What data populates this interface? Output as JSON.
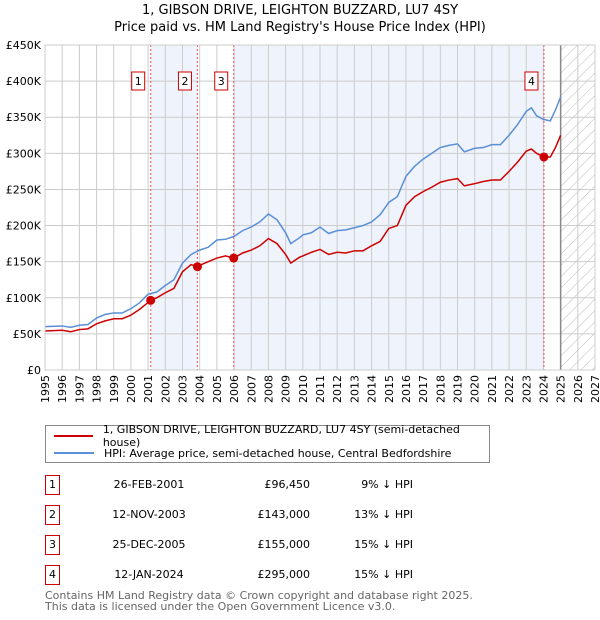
{
  "chart_data": {
    "type": "line",
    "title": "1, GIBSON DRIVE, LEIGHTON BUZZARD, LU7 4SY",
    "subtitle": "Price paid vs. HM Land Registry's House Price Index (HPI)",
    "xlim": [
      1995,
      2027
    ],
    "ylim": [
      0,
      450000
    ],
    "x_ticks": [
      "1995",
      "1996",
      "1997",
      "1998",
      "1999",
      "2000",
      "2001",
      "2002",
      "2003",
      "2004",
      "2005",
      "2006",
      "2007",
      "2008",
      "2009",
      "2010",
      "2011",
      "2012",
      "2013",
      "2014",
      "2015",
      "2016",
      "2017",
      "2018",
      "2019",
      "2020",
      "2021",
      "2022",
      "2023",
      "2024",
      "2025",
      "2026",
      "2027"
    ],
    "y_ticks": [
      {
        "v": 0,
        "label": "£0"
      },
      {
        "v": 50000,
        "label": "£50K"
      },
      {
        "v": 100000,
        "label": "£100K"
      },
      {
        "v": 150000,
        "label": "£150K"
      },
      {
        "v": 200000,
        "label": "£200K"
      },
      {
        "v": 250000,
        "label": "£250K"
      },
      {
        "v": 300000,
        "label": "£300K"
      },
      {
        "v": 350000,
        "label": "£350K"
      },
      {
        "v": 400000,
        "label": "£400K"
      },
      {
        "v": 450000,
        "label": "£450K"
      }
    ],
    "grid": true,
    "forecast_start": 2025,
    "series": [
      {
        "name": "1, GIBSON DRIVE, LEIGHTON BUZZARD, LU7 4SY (semi-detached house)",
        "color": "#cc0000",
        "x": [
          1995,
          1996,
          1996.5,
          1997,
          1997.5,
          1998,
          1998.5,
          1999,
          1999.5,
          2000,
          2000.5,
          2001.15,
          2001.5,
          2002,
          2002.5,
          2003,
          2003.5,
          2003.87,
          2004,
          2004.5,
          2005,
          2005.5,
          2005.98,
          2006.5,
          2007,
          2007.5,
          2008,
          2008.5,
          2009,
          2009.3,
          2009.8,
          2010,
          2010.5,
          2011,
          2011.5,
          2012,
          2012.5,
          2013,
          2013.5,
          2014,
          2014.5,
          2015,
          2015.5,
          2016,
          2016.5,
          2017,
          2017.5,
          2018,
          2018.5,
          2019,
          2019.4,
          2020,
          2020.5,
          2021,
          2021.5,
          2022,
          2022.5,
          2023,
          2023.3,
          2023.6,
          2024.03,
          2024.4,
          2024.7,
          2025
        ],
        "y": [
          54000,
          55000,
          53000,
          56000,
          57000,
          64000,
          68000,
          71000,
          71000,
          76000,
          84000,
          96450,
          100000,
          107000,
          113000,
          136000,
          146000,
          143000,
          145000,
          150000,
          155000,
          158000,
          155000,
          162000,
          166000,
          172000,
          182000,
          175000,
          160000,
          148000,
          156000,
          158000,
          163000,
          167000,
          160000,
          163000,
          162000,
          165000,
          165000,
          172000,
          178000,
          196000,
          200000,
          228000,
          240000,
          247000,
          253000,
          260000,
          263000,
          265000,
          255000,
          258000,
          261000,
          263000,
          263000,
          275000,
          288000,
          303000,
          306000,
          300000,
          295000,
          295000,
          308000,
          325000
        ]
      },
      {
        "name": "HPI: Average price, semi-detached house, Central Bedfordshire",
        "color": "#5b8fd6",
        "x": [
          1995,
          1996,
          1996.5,
          1997,
          1997.5,
          1998,
          1998.5,
          1999,
          1999.5,
          2000,
          2000.5,
          2001,
          2001.5,
          2002,
          2002.5,
          2003,
          2003.5,
          2004,
          2004.5,
          2005,
          2005.5,
          2006,
          2006.5,
          2007,
          2007.5,
          2008,
          2008.5,
          2009,
          2009.3,
          2009.8,
          2010,
          2010.5,
          2011,
          2011.5,
          2012,
          2012.5,
          2013,
          2013.5,
          2014,
          2014.5,
          2015,
          2015.5,
          2016,
          2016.5,
          2017,
          2017.5,
          2018,
          2018.5,
          2019,
          2019.4,
          2020,
          2020.5,
          2021,
          2021.5,
          2022,
          2022.5,
          2023,
          2023.3,
          2023.6,
          2024,
          2024.4,
          2024.7,
          2025
        ],
        "y": [
          60000,
          61000,
          59000,
          62000,
          63000,
          72000,
          77000,
          79000,
          79000,
          85000,
          93000,
          105000,
          108000,
          117000,
          125000,
          148000,
          160000,
          166000,
          170000,
          180000,
          181000,
          185000,
          193000,
          198000,
          205000,
          216000,
          208000,
          190000,
          175000,
          183000,
          187000,
          190000,
          198000,
          189000,
          193000,
          194000,
          197000,
          200000,
          205000,
          215000,
          232000,
          240000,
          268000,
          282000,
          292000,
          300000,
          308000,
          311000,
          313000,
          302000,
          307000,
          308000,
          312000,
          312000,
          325000,
          340000,
          358000,
          363000,
          352000,
          347000,
          345000,
          360000,
          378000
        ]
      }
    ],
    "sales": [
      {
        "n": "1",
        "x": 2001.15,
        "date": "26-FEB-2001",
        "price": 96450,
        "price_label": "£96,450",
        "hpi": "9% ↓ HPI"
      },
      {
        "n": "2",
        "x": 2003.87,
        "date": "12-NOV-2003",
        "price": 143000,
        "price_label": "£143,000",
        "hpi": "13% ↓ HPI"
      },
      {
        "n": "3",
        "x": 2005.98,
        "date": "25-DEC-2005",
        "price": 155000,
        "price_label": "£155,000",
        "hpi": "15% ↓ HPI"
      },
      {
        "n": "4",
        "x": 2024.03,
        "date": "12-JAN-2024",
        "price": 295000,
        "price_label": "£295,000",
        "hpi": "15% ↓ HPI"
      }
    ]
  },
  "legend": {
    "property": "1, GIBSON DRIVE, LEIGHTON BUZZARD, LU7 4SY (semi-detached house)",
    "hpi": "HPI: Average price, semi-detached house, Central Bedfordshire"
  },
  "footer": {
    "line1": "Contains HM Land Registry data © Crown copyright and database right 2025.",
    "line2": "This data is licensed under the Open Government Licence v3.0."
  }
}
